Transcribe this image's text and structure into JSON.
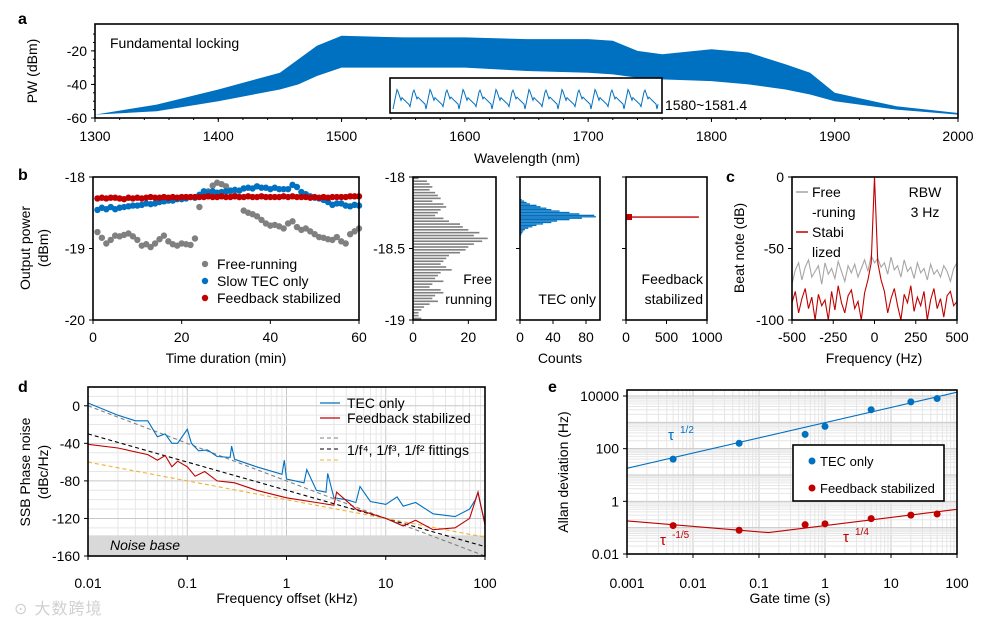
{
  "panel_labels": [
    "a",
    "b",
    "c",
    "d",
    "e"
  ],
  "watermark": "大数跨境",
  "chart_data": [
    {
      "type": "area",
      "annotation": "Fundamental locking",
      "xlabel": "Wavelength (nm)",
      "ylabel": "PW (dBm)",
      "xlim": [
        1300,
        2000
      ],
      "ylim": [
        -60,
        -4
      ],
      "x_ticks": [
        1300,
        1400,
        1500,
        1600,
        1700,
        1800,
        1900,
        2000
      ],
      "y_ticks": [
        -20,
        -40,
        -60
      ],
      "color": "#0070c0",
      "envelope_x": [
        1300,
        1350,
        1400,
        1450,
        1465,
        1480,
        1500,
        1550,
        1600,
        1650,
        1700,
        1720,
        1740,
        1760,
        1800,
        1830,
        1860,
        1880,
        1900,
        1950,
        2000
      ],
      "envelope_upper": [
        -58,
        -52,
        -43,
        -33,
        -25,
        -17,
        -11,
        -12,
        -12,
        -13,
        -13,
        -14,
        -20,
        -22,
        -19,
        -21,
        -28,
        -33,
        -45,
        -53,
        -57
      ],
      "envelope_lower": [
        -58,
        -56,
        -50,
        -43,
        -40,
        -35,
        -30,
        -30,
        -30,
        -32,
        -33,
        -34,
        -36,
        -37,
        -38,
        -40,
        -43,
        -46,
        -50,
        -55,
        -58
      ],
      "inset_label": "1580~1581.4"
    },
    {
      "type": "scatter",
      "xlabel": "Time duration (min)",
      "ylabel": [
        "Output power",
        "(dBm)"
      ],
      "xlim": [
        0,
        60
      ],
      "ylim": [
        -20,
        -18
      ],
      "x_ticks": [
        0,
        20,
        40,
        60
      ],
      "y_ticks": [
        -18,
        -19,
        -20
      ],
      "x": [
        1,
        2,
        3,
        4,
        5,
        6,
        7,
        8,
        9,
        10,
        11,
        12,
        13,
        14,
        15,
        16,
        17,
        18,
        19,
        20,
        21,
        22,
        23,
        24,
        25,
        26,
        27,
        28,
        29,
        30,
        31,
        32,
        33,
        34,
        35,
        36,
        37,
        38,
        39,
        40,
        41,
        42,
        43,
        44,
        45,
        46,
        47,
        48,
        49,
        50,
        51,
        52,
        53,
        54,
        55,
        56,
        57,
        58,
        59,
        60
      ],
      "series": [
        {
          "name": "Free-running",
          "color": "#808080",
          "values": [
            -18.77,
            -18.85,
            -18.93,
            -18.88,
            -18.82,
            -18.83,
            -18.81,
            -18.79,
            -18.83,
            -18.88,
            -18.96,
            -18.94,
            -18.98,
            -18.93,
            -18.87,
            -18.82,
            -18.9,
            -18.94,
            -18.96,
            -18.93,
            -18.94,
            -18.95,
            -18.86,
            -18.42,
            -18.22,
            -18.2,
            -18.12,
            -18.08,
            -18.1,
            -18.13,
            -18.2,
            -18.26,
            -18.28,
            -18.47,
            -18.5,
            -18.52,
            -18.55,
            -18.6,
            -18.65,
            -18.68,
            -18.67,
            -18.69,
            -18.72,
            -18.65,
            -18.62,
            -18.7,
            -18.74,
            -18.72,
            -18.76,
            -18.8,
            -18.84,
            -18.85,
            -18.87,
            -18.88,
            -18.84,
            -18.9,
            -18.93,
            -18.8,
            -18.76,
            -18.72
          ]
        },
        {
          "name": "Slow TEC only",
          "color": "#0070c0",
          "values": [
            -18.46,
            -18.43,
            -18.45,
            -18.42,
            -18.45,
            -18.43,
            -18.42,
            -18.41,
            -18.4,
            -18.4,
            -18.39,
            -18.37,
            -18.38,
            -18.37,
            -18.35,
            -18.34,
            -18.33,
            -18.33,
            -18.31,
            -18.31,
            -18.3,
            -18.28,
            -18.29,
            -18.25,
            -18.2,
            -18.22,
            -18.2,
            -18.22,
            -18.21,
            -18.2,
            -18.19,
            -18.18,
            -18.19,
            -18.16,
            -18.15,
            -18.16,
            -18.13,
            -18.15,
            -18.15,
            -18.17,
            -18.15,
            -18.17,
            -18.17,
            -18.17,
            -18.11,
            -18.14,
            -18.21,
            -18.24,
            -18.27,
            -18.29,
            -18.3,
            -18.32,
            -18.35,
            -18.39,
            -18.37,
            -18.37,
            -18.4,
            -18.41,
            -18.39,
            -18.4
          ]
        },
        {
          "name": "Feedback stabilized",
          "color": "#c00000",
          "values": [
            -18.3,
            -18.29,
            -18.3,
            -18.29,
            -18.29,
            -18.3,
            -18.31,
            -18.29,
            -18.3,
            -18.29,
            -18.3,
            -18.29,
            -18.28,
            -18.29,
            -18.29,
            -18.28,
            -18.29,
            -18.28,
            -18.29,
            -18.28,
            -18.28,
            -18.28,
            -18.28,
            -18.28,
            -18.28,
            -18.27,
            -18.28,
            -18.28,
            -18.27,
            -18.28,
            -18.28,
            -18.27,
            -18.28,
            -18.28,
            -18.27,
            -18.28,
            -18.28,
            -18.27,
            -18.28,
            -18.28,
            -18.28,
            -18.28,
            -18.27,
            -18.28,
            -18.27,
            -18.28,
            -18.28,
            -18.28,
            -18.29,
            -18.28,
            -18.29,
            -18.28,
            -18.29,
            -18.28,
            -18.28,
            -18.28,
            -18.28,
            -18.27,
            -18.27,
            -18.27
          ]
        }
      ],
      "legend_position": "bottom-right"
    },
    {
      "type": "histogram",
      "orientation": "horizontal",
      "label": [
        "Free",
        "running"
      ],
      "xlim": [
        0,
        30
      ],
      "ylim": [
        -19,
        -18
      ],
      "x_ticks": [
        0,
        20
      ],
      "y_ticks": [
        "-18",
        "-18.5",
        "-19"
      ],
      "bin_start": -18.01,
      "bin_step": -0.02,
      "color": "#808080",
      "counts": [
        2,
        5,
        6,
        7,
        6,
        8,
        9,
        10,
        7,
        11,
        12,
        10,
        9,
        8,
        11,
        13,
        17,
        18,
        20,
        24,
        22,
        27,
        25,
        22,
        20,
        19,
        17,
        13,
        12,
        11,
        10,
        12,
        14,
        10,
        9,
        8,
        11,
        7,
        6,
        10,
        11,
        8,
        7,
        9,
        6,
        4,
        3,
        2,
        2,
        3
      ]
    },
    {
      "type": "histogram",
      "orientation": "horizontal",
      "label": [
        "TEC only"
      ],
      "xlabel": "Counts",
      "xlim": [
        0,
        97
      ],
      "ylim": [
        -19,
        -18
      ],
      "x_ticks": [
        0,
        40,
        80
      ],
      "bin_start": -18.16,
      "bin_step": -0.01,
      "color": "#0070c0",
      "counts": [
        2,
        5,
        8,
        12,
        20,
        25,
        32,
        38,
        48,
        60,
        72,
        90,
        92,
        75,
        60,
        45,
        38,
        28,
        20,
        15,
        10,
        6,
        4,
        3,
        2,
        1
      ]
    },
    {
      "type": "histogram",
      "orientation": "horizontal",
      "label": [
        "Feedback",
        "stabilized"
      ],
      "xlim": [
        0,
        1000
      ],
      "ylim": [
        -19,
        -18
      ],
      "x_ticks": [
        0,
        500,
        1000
      ],
      "bin_start": -18.28,
      "bin_step": -0.01,
      "color": "#c00000",
      "counts": [
        900
      ]
    },
    {
      "type": "line",
      "xlabel": "Frequency (Hz)",
      "ylabel": "Beat note (dB)",
      "xlim": [
        -500,
        500
      ],
      "ylim": [
        -100,
        0
      ],
      "x_ticks": [
        -500,
        -250,
        0,
        250,
        500
      ],
      "y_ticks": [
        0,
        -50,
        -100
      ],
      "annotation": [
        "RBW",
        "3 Hz"
      ],
      "x_start": -500,
      "x_step": 20,
      "series": [
        {
          "name": [
            "Free",
            "-runing"
          ],
          "color": "#a6a6a6",
          "values": [
            -75,
            -65,
            -60,
            -72,
            -63,
            -58,
            -70,
            -66,
            -62,
            -75,
            -60,
            -68,
            -64,
            -71,
            -59,
            -66,
            -73,
            -62,
            -67,
            -61,
            -70,
            -64,
            -58,
            -66,
            -55,
            -60,
            -57,
            -63,
            -60,
            -68,
            -56,
            -65,
            -62,
            -70,
            -58,
            -66,
            -63,
            -71,
            -60,
            -67,
            -64,
            -72,
            -61,
            -68,
            -65,
            -70,
            -62,
            -66,
            -73,
            -64,
            -60
          ]
        },
        {
          "name": [
            "Stabi",
            "lized"
          ],
          "color": "#c00000",
          "values": [
            -88,
            -80,
            -95,
            -85,
            -78,
            -92,
            -84,
            -100,
            -82,
            -90,
            -86,
            -100,
            -80,
            -93,
            -76,
            -88,
            -95,
            -83,
            -79,
            -92,
            -87,
            -100,
            -81,
            -72,
            -60,
            0,
            -60,
            -72,
            -80,
            -95,
            -85,
            -78,
            -90,
            -100,
            -82,
            -88,
            -76,
            -94,
            -84,
            -90,
            -80,
            -100,
            -86,
            -78,
            -92,
            -85,
            -98,
            -83,
            -80,
            -90,
            -87
          ]
        }
      ],
      "legend_position": "top-left"
    },
    {
      "type": "line",
      "xlog": true,
      "xlabel": "Frequency offset (kHz)",
      "ylabel": [
        "SSB Phase noise",
        "(dBc/Hz)"
      ],
      "xlim": [
        0.01,
        100
      ],
      "ylim": [
        -160,
        20
      ],
      "x_ticks": [
        0.01,
        0.1,
        1,
        10,
        100
      ],
      "y_ticks": [
        0,
        -40,
        -80,
        -120,
        -160
      ],
      "noise_base": {
        "label": "Noise base",
        "level": -138
      },
      "series": [
        {
          "name": "TEC only",
          "color": "#0070c0",
          "x": [
            0.01,
            0.02,
            0.03,
            0.04,
            0.05,
            0.06,
            0.07,
            0.08,
            0.1,
            0.11,
            0.13,
            0.16,
            0.2,
            0.27,
            0.28,
            0.3,
            0.5,
            0.9,
            0.95,
            1,
            1.5,
            1.6,
            2,
            2.5,
            2.6,
            3,
            4,
            5,
            5.5,
            7,
            10,
            13,
            15,
            20,
            30,
            50,
            70,
            80,
            85,
            90,
            100
          ],
          "y": [
            3,
            -10,
            -16,
            -16,
            -33,
            -30,
            -40,
            -40,
            -25,
            -40,
            -48,
            -47,
            -54,
            -55,
            -43,
            -57,
            -65,
            -73,
            -58,
            -78,
            -82,
            -68,
            -90,
            -92,
            -72,
            -98,
            -100,
            -103,
            -86,
            -102,
            -105,
            -97,
            -107,
            -103,
            -115,
            -118,
            -110,
            -100,
            -92,
            -105,
            -125
          ]
        },
        {
          "name": "Feedback stabilized",
          "color": "#c00000",
          "x": [
            0.01,
            0.02,
            0.04,
            0.05,
            0.06,
            0.07,
            0.08,
            0.1,
            0.12,
            0.15,
            0.2,
            0.3,
            0.5,
            1,
            2,
            3,
            3.2,
            5,
            10,
            15,
            20,
            30,
            50,
            70,
            85,
            100
          ],
          "y": [
            -41,
            -45,
            -52,
            -58,
            -53,
            -65,
            -59,
            -65,
            -75,
            -70,
            -80,
            -82,
            -90,
            -98,
            -103,
            -106,
            -92,
            -110,
            -120,
            -128,
            -122,
            -132,
            -130,
            -120,
            -92,
            -127
          ]
        }
      ],
      "fits": {
        "label": "1/f⁴, 1/f³, 1/f² fittings",
        "lines": [
          {
            "order": 4,
            "color": "#808080",
            "y_at_0.01": 0,
            "y_at_100": -160
          },
          {
            "order": 3,
            "color": "#000000",
            "y_at_0.01": -30,
            "y_at_100": -150
          },
          {
            "order": 2,
            "color": "#f0b030",
            "y_at_0.01": -60,
            "y_at_100": -140
          }
        ]
      },
      "legend_position": "top-right"
    },
    {
      "type": "scatter",
      "xlog": true,
      "ylog": true,
      "xlabel": "Gate time (s)",
      "ylabel": "Allan deviation (Hz)",
      "xlim": [
        0.001,
        100
      ],
      "ylim": [
        0.01,
        16900
      ],
      "x_ticks": [
        0.001,
        0.01,
        0.1,
        1,
        10,
        100
      ],
      "y_ticks": [
        10000,
        100,
        1,
        0.01
      ],
      "series": [
        {
          "name": "TEC only",
          "color": "#0070c0",
          "x": [
            0.005,
            0.05,
            0.5,
            1,
            5,
            20,
            50
          ],
          "y": [
            40,
            160,
            350,
            700,
            3000,
            6000,
            8000
          ],
          "fit": {
            "x": [
              0.001,
              100
            ],
            "y": [
              18,
              14000
            ],
            "label_base": "τ",
            "label_exp": "1/2"
          }
        },
        {
          "name": "Feedback stabilized",
          "color": "#c00000",
          "x": [
            0.005,
            0.05,
            0.5,
            1,
            5,
            20,
            50
          ],
          "y": [
            0.12,
            0.08,
            0.13,
            0.14,
            0.22,
            0.3,
            0.33
          ],
          "fit": {
            "x": [
              0.001,
              0.14,
              100
            ],
            "y": [
              0.18,
              0.065,
              0.5
            ],
            "labels": [
              {
                "base": "τ",
                "exp": "-1/5"
              },
              {
                "base": "τ",
                "exp": "1/4"
              }
            ]
          }
        }
      ],
      "legend_position": "center-right"
    }
  ]
}
